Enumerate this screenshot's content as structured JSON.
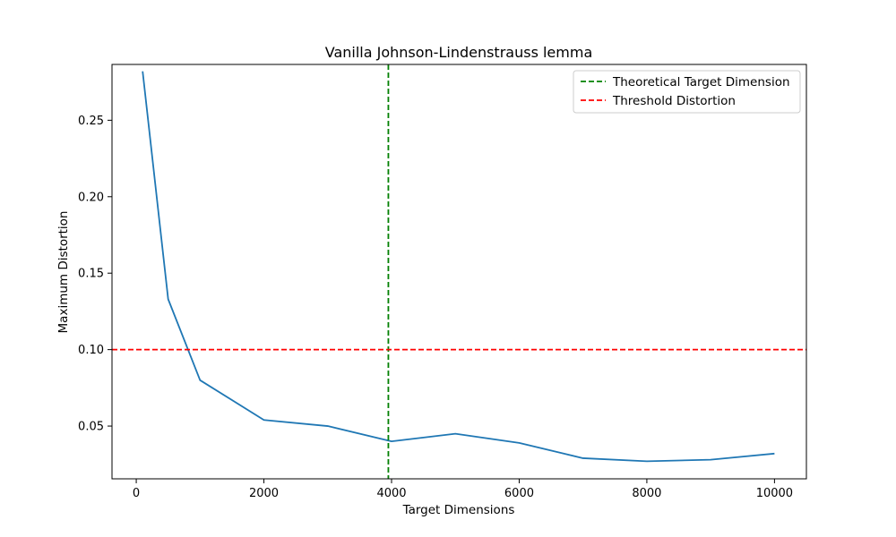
{
  "chart_data": {
    "type": "line",
    "title": "Vanilla Johnson-Lindenstrauss lemma",
    "xlabel": "Target Dimensions",
    "ylabel": "Maximum Distortion",
    "xlim": [
      -380,
      10500
    ],
    "ylim": [
      0.0155,
      0.2865
    ],
    "xticks": [
      0,
      2000,
      4000,
      6000,
      8000,
      10000
    ],
    "xtick_labels": [
      "0",
      "2000",
      "4000",
      "6000",
      "8000",
      "10000"
    ],
    "yticks": [
      0.05,
      0.1,
      0.15,
      0.2,
      0.25
    ],
    "ytick_labels": [
      "0.05",
      "0.10",
      "0.15",
      "0.20",
      "0.25"
    ],
    "grid": false,
    "legend_placement": "top-right",
    "series": [
      {
        "color": "#1f77b4",
        "x": [
          100,
          500,
          1000,
          2000,
          3000,
          4000,
          5000,
          6000,
          7000,
          8000,
          9000,
          10000
        ],
        "y": [
          0.282,
          0.133,
          0.08,
          0.054,
          0.05,
          0.04,
          0.045,
          0.039,
          0.029,
          0.027,
          0.028,
          0.032
        ]
      }
    ],
    "reference_lines": [
      {
        "orientation": "vertical",
        "value": 3950,
        "name": "Theoretical Target Dimension",
        "color": "#008000",
        "style": "dashed"
      },
      {
        "orientation": "horizontal",
        "value": 0.1,
        "name": "Threshold Distortion",
        "color": "#ff0000",
        "style": "dashed"
      }
    ]
  }
}
